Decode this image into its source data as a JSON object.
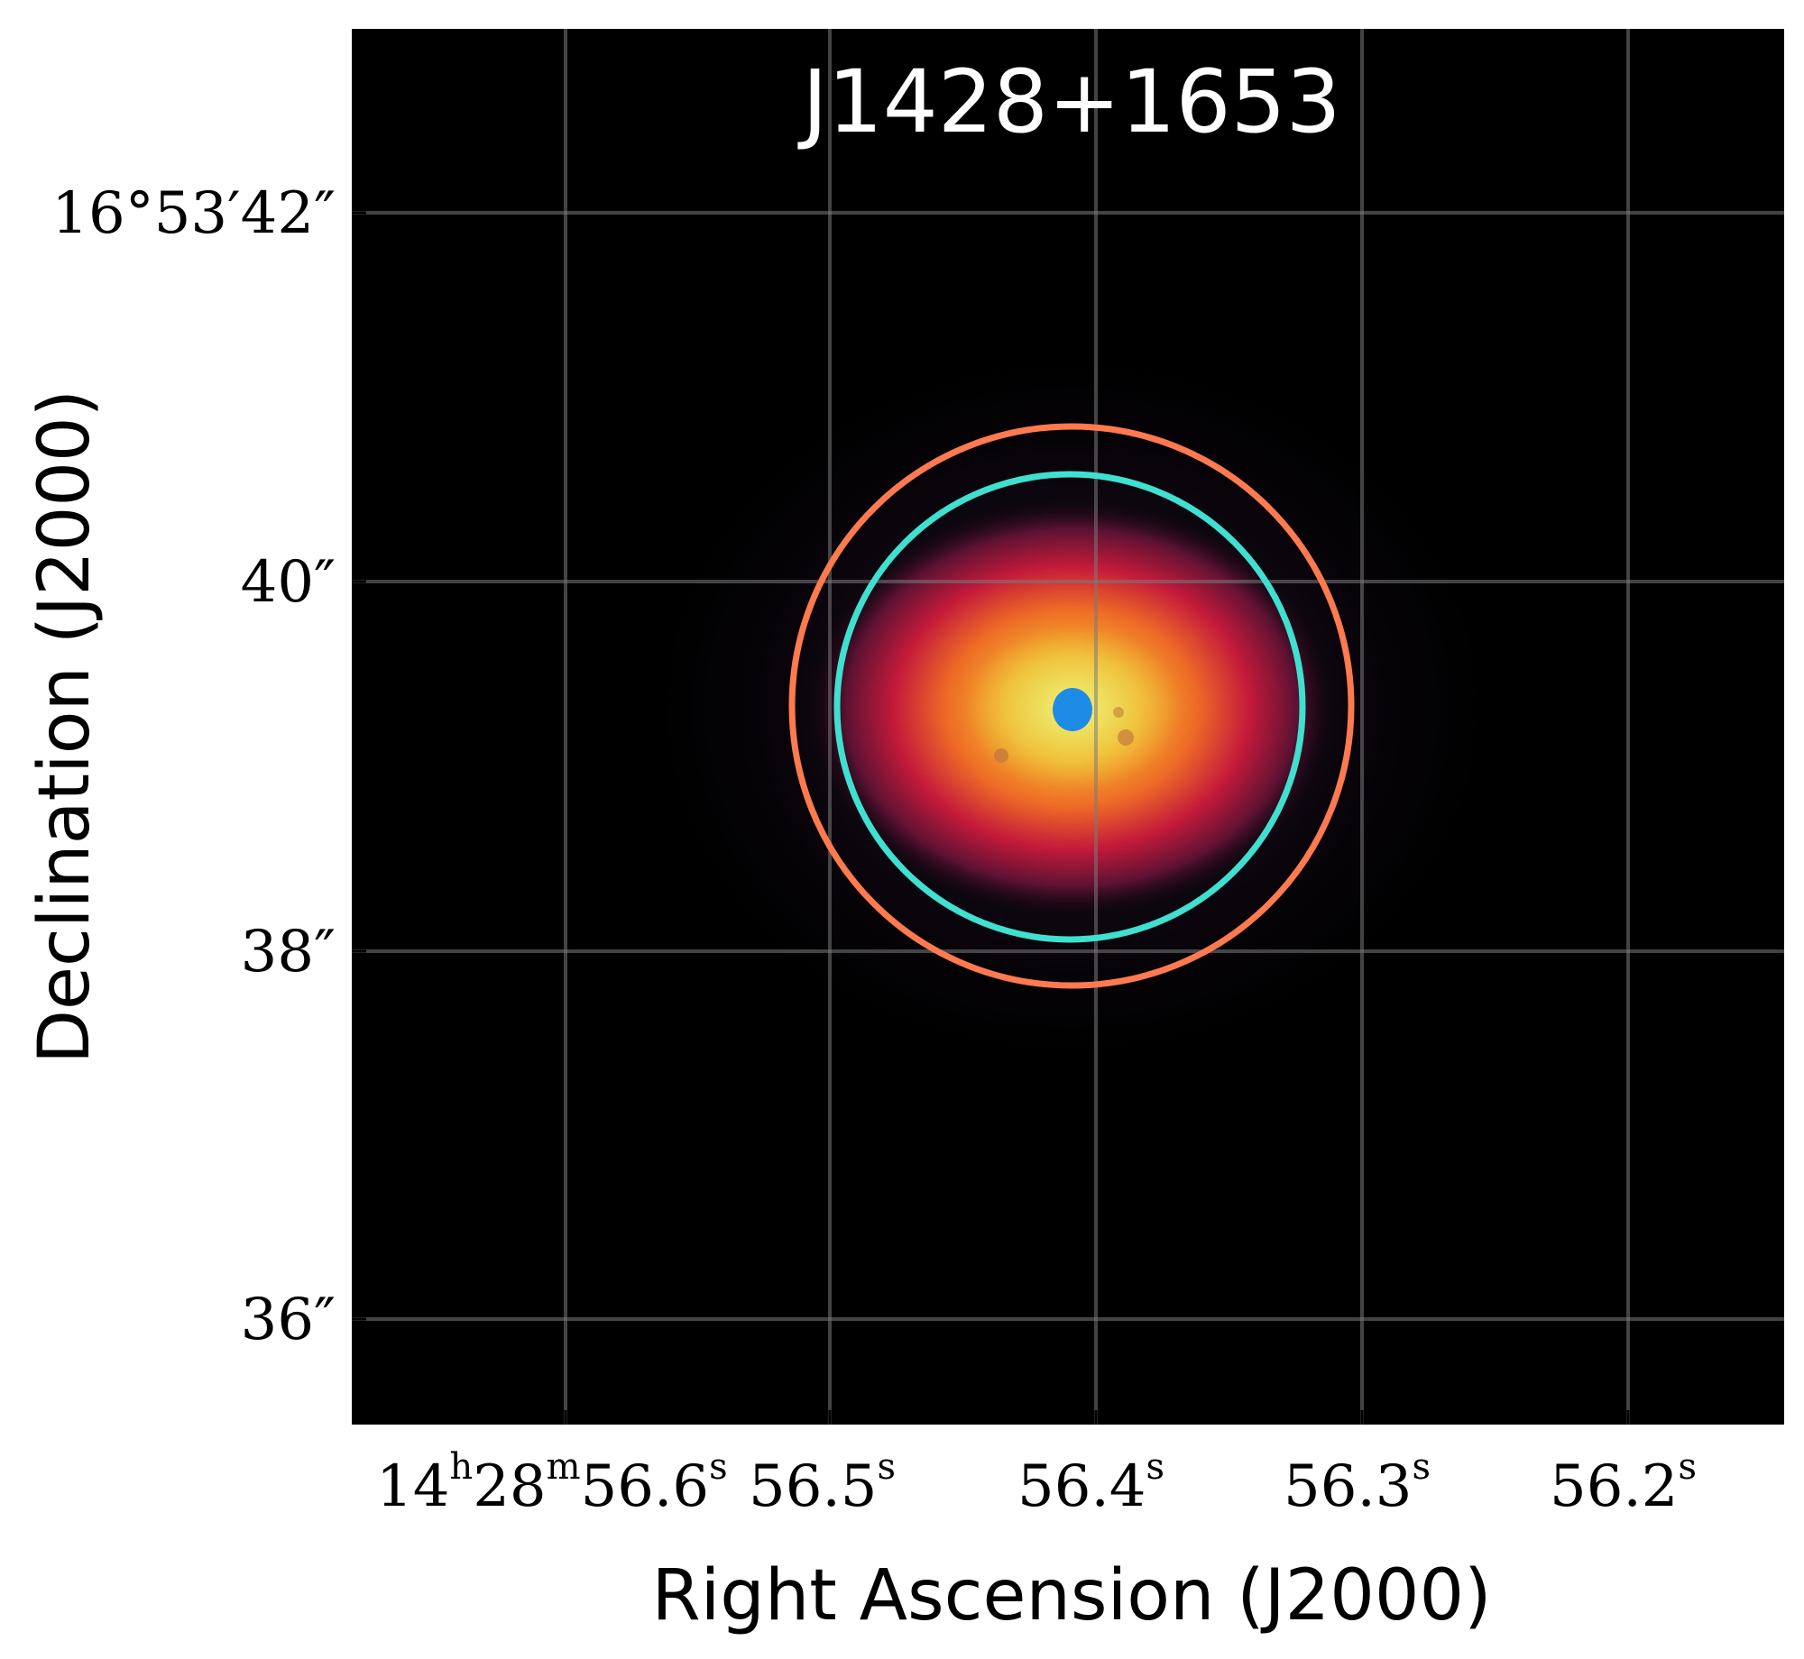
{
  "title": "J1428+1653",
  "xlabel": "Right Ascension (J2000)",
  "ylabel": "Declination (J2000)",
  "x_ticks": [
    {
      "h": "14",
      "m": "28",
      "s": "56.6",
      "label": ""
    },
    {
      "label": "56.5"
    },
    {
      "label": "56.4"
    },
    {
      "label": "56.3"
    },
    {
      "label": "56.2"
    }
  ],
  "x_tick_sup_h": "h",
  "x_tick_sup_m": "m",
  "x_tick_sup_s": "s",
  "y_ticks": [
    {
      "label": "16°53′42″"
    },
    {
      "label": "40″"
    },
    {
      "label": "38″"
    },
    {
      "label": "36″"
    }
  ],
  "colors": {
    "background": "#000000",
    "outer_aperture": "#ff7a4f",
    "inner_aperture": "#3fe0cf",
    "core": "#1e8be6",
    "grid": "#7a7a7a"
  }
}
